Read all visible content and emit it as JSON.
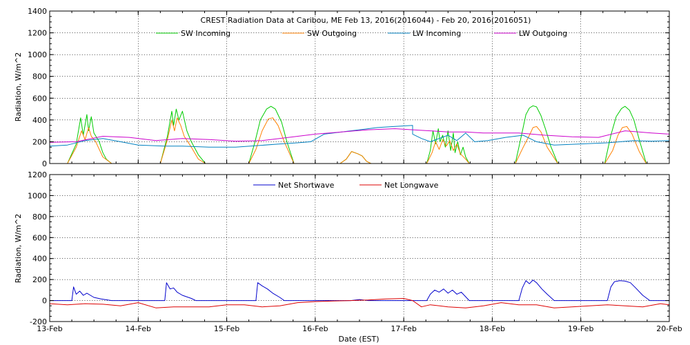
{
  "chart_data": [
    {
      "type": "line",
      "title": "CREST Radiation Data at Caribou, ME   Feb 13, 2016(2016044) - Feb 20, 2016(2016051)",
      "xlabel": "",
      "ylabel": "Radiation, W/m^2",
      "ylim": [
        0,
        1400
      ],
      "yticks": [
        0,
        200,
        400,
        600,
        800,
        1000,
        1200,
        1400
      ],
      "xlim": [
        0,
        7
      ],
      "grid": true,
      "legend_position": "top",
      "series": [
        {
          "name": "SW Incoming",
          "color": "#00cc00",
          "x": [
            0.2,
            0.3,
            0.35,
            0.38,
            0.42,
            0.44,
            0.47,
            0.5,
            0.56,
            0.6,
            0.64,
            0.7,
            1.25,
            1.33,
            1.38,
            1.4,
            1.43,
            1.46,
            1.5,
            1.55,
            1.6,
            1.68,
            1.76,
            2.25,
            2.32,
            2.38,
            2.45,
            2.5,
            2.55,
            2.62,
            2.68,
            2.76,
            3.28,
            3.35,
            3.41,
            3.48,
            3.53,
            3.58,
            3.63,
            4.26,
            4.3,
            4.33,
            4.36,
            4.39,
            4.41,
            4.44,
            4.47,
            4.5,
            4.53,
            4.56,
            4.58,
            4.61,
            4.64,
            4.67,
            4.7,
            4.74,
            5.26,
            5.33,
            5.38,
            5.42,
            5.46,
            5.5,
            5.55,
            5.6,
            5.66,
            5.74,
            6.27,
            6.34,
            6.4,
            6.46,
            6.5,
            6.55,
            6.6,
            6.66,
            6.74
          ],
          "y": [
            0,
            180,
            420,
            260,
            450,
            300,
            430,
            280,
            200,
            100,
            40,
            0,
            0,
            250,
            480,
            350,
            500,
            400,
            480,
            300,
            200,
            80,
            0,
            0,
            200,
            400,
            500,
            525,
            500,
            380,
            200,
            0,
            0,
            40,
            110,
            90,
            70,
            20,
            0,
            0,
            120,
            300,
            180,
            320,
            200,
            260,
            150,
            300,
            120,
            280,
            100,
            200,
            80,
            150,
            60,
            0,
            0,
            260,
            450,
            510,
            530,
            520,
            440,
            320,
            160,
            0,
            0,
            260,
            430,
            505,
            525,
            490,
            400,
            220,
            0
          ]
        },
        {
          "name": "SW Outgoing",
          "color": "#ff8000",
          "x": [
            0.2,
            0.3,
            0.36,
            0.4,
            0.44,
            0.47,
            0.52,
            0.6,
            0.7,
            1.25,
            1.33,
            1.38,
            1.41,
            1.44,
            1.48,
            1.52,
            1.6,
            1.68,
            1.76,
            2.25,
            2.33,
            2.4,
            2.47,
            2.52,
            2.58,
            2.65,
            2.76,
            3.28,
            3.35,
            3.41,
            3.48,
            3.53,
            3.58,
            3.63,
            4.26,
            4.32,
            4.36,
            4.4,
            4.44,
            4.48,
            4.52,
            4.56,
            4.6,
            4.64,
            4.7,
            4.74,
            5.26,
            5.35,
            5.42,
            5.46,
            5.5,
            5.55,
            5.62,
            5.74,
            6.27,
            6.36,
            6.42,
            6.47,
            6.52,
            6.58,
            6.66,
            6.74
          ],
          "y": [
            0,
            150,
            300,
            220,
            330,
            250,
            200,
            60,
            0,
            0,
            220,
            400,
            300,
            420,
            350,
            250,
            150,
            40,
            0,
            0,
            130,
            300,
            410,
            420,
            350,
            200,
            0,
            0,
            40,
            110,
            90,
            70,
            20,
            0,
            0,
            100,
            200,
            130,
            220,
            160,
            210,
            120,
            180,
            90,
            40,
            0,
            0,
            150,
            260,
            330,
            340,
            290,
            150,
            0,
            0,
            120,
            260,
            330,
            340,
            270,
            110,
            0
          ]
        },
        {
          "name": "LW Incoming",
          "color": "#0080c0",
          "x": [
            0,
            0.2,
            0.4,
            0.6,
            0.8,
            1.0,
            1.3,
            1.5,
            1.8,
            2.1,
            2.35,
            2.6,
            2.8,
            2.95,
            3.1,
            3.3,
            3.5,
            3.7,
            3.9,
            4.1,
            4.1,
            4.2,
            4.3,
            4.5,
            4.6,
            4.7,
            4.8,
            4.95,
            5.15,
            5.35,
            5.5,
            5.7,
            6.0,
            6.3,
            6.6,
            6.8,
            7.0
          ],
          "y": [
            160,
            170,
            210,
            230,
            200,
            170,
            160,
            160,
            150,
            150,
            165,
            180,
            190,
            200,
            270,
            290,
            310,
            330,
            340,
            350,
            270,
            230,
            200,
            260,
            210,
            280,
            200,
            210,
            240,
            260,
            200,
            170,
            180,
            190,
            210,
            205,
            210
          ]
        },
        {
          "name": "LW Outgoing",
          "color": "#cc00cc",
          "x": [
            0,
            0.3,
            0.6,
            0.9,
            1.2,
            1.5,
            1.8,
            2.1,
            2.4,
            2.7,
            3.0,
            3.3,
            3.6,
            3.9,
            4.1,
            4.3,
            4.5,
            4.7,
            4.9,
            5.1,
            5.3,
            5.6,
            5.9,
            6.2,
            6.5,
            6.8,
            7.0
          ],
          "y": [
            195,
            200,
            250,
            240,
            210,
            230,
            220,
            205,
            210,
            240,
            270,
            290,
            310,
            320,
            310,
            300,
            290,
            290,
            280,
            280,
            280,
            260,
            245,
            240,
            300,
            280,
            270
          ]
        }
      ]
    },
    {
      "type": "line",
      "title": "",
      "xlabel": "Date (EST)",
      "ylabel": "Radiation, W/m^2",
      "ylim": [
        -200,
        1200
      ],
      "yticks": [
        -200,
        0,
        200,
        400,
        600,
        800,
        1000,
        1200
      ],
      "xlim": [
        0,
        7
      ],
      "grid": true,
      "legend_position": "top",
      "categories": [
        "13-Feb",
        "14-Feb",
        "15-Feb",
        "16-Feb",
        "17-Feb",
        "18-Feb",
        "19-Feb",
        "20-Feb"
      ],
      "series": [
        {
          "name": "Net Shortwave",
          "color": "#0000cc",
          "x": [
            0,
            0.25,
            0.27,
            0.3,
            0.34,
            0.38,
            0.42,
            0.5,
            0.58,
            0.7,
            1.0,
            1.3,
            1.32,
            1.36,
            1.4,
            1.44,
            1.5,
            1.6,
            1.65,
            2.0,
            2.33,
            2.35,
            2.4,
            2.46,
            2.52,
            2.6,
            2.65,
            3.0,
            3.4,
            3.5,
            3.6,
            4.0,
            4.26,
            4.3,
            4.35,
            4.4,
            4.45,
            4.5,
            4.55,
            4.6,
            4.65,
            4.74,
            5.0,
            5.3,
            5.34,
            5.38,
            5.42,
            5.46,
            5.5,
            5.56,
            5.62,
            5.7,
            6.0,
            6.3,
            6.34,
            6.38,
            6.44,
            6.5,
            6.56,
            6.62,
            6.7,
            6.78,
            7.0
          ],
          "y": [
            0,
            0,
            130,
            60,
            90,
            50,
            70,
            30,
            15,
            0,
            0,
            0,
            170,
            110,
            120,
            80,
            50,
            20,
            0,
            0,
            0,
            170,
            140,
            110,
            70,
            30,
            0,
            0,
            0,
            10,
            0,
            0,
            0,
            60,
            100,
            80,
            110,
            70,
            100,
            60,
            80,
            0,
            0,
            0,
            120,
            190,
            160,
            195,
            170,
            110,
            60,
            0,
            0,
            0,
            130,
            180,
            190,
            185,
            170,
            120,
            50,
            0,
            0
          ]
        },
        {
          "name": "Net Longwave",
          "color": "#dd0000",
          "x": [
            0,
            0.2,
            0.4,
            0.6,
            0.8,
            1.0,
            1.2,
            1.4,
            1.6,
            1.8,
            2.0,
            2.2,
            2.4,
            2.6,
            2.8,
            3.0,
            3.2,
            3.4,
            3.6,
            3.8,
            4.0,
            4.1,
            4.2,
            4.3,
            4.5,
            4.7,
            4.9,
            5.1,
            5.3,
            5.5,
            5.7,
            5.9,
            6.1,
            6.3,
            6.5,
            6.7,
            6.9,
            7.0
          ],
          "y": [
            -30,
            -40,
            -30,
            -35,
            -50,
            -20,
            -70,
            -60,
            -60,
            -60,
            -40,
            -40,
            -60,
            -50,
            -20,
            -10,
            -5,
            0,
            5,
            15,
            20,
            0,
            -60,
            -40,
            -60,
            -70,
            -50,
            -20,
            -40,
            -40,
            -70,
            -60,
            -50,
            -40,
            -50,
            -60,
            -30,
            -40
          ]
        }
      ]
    }
  ]
}
